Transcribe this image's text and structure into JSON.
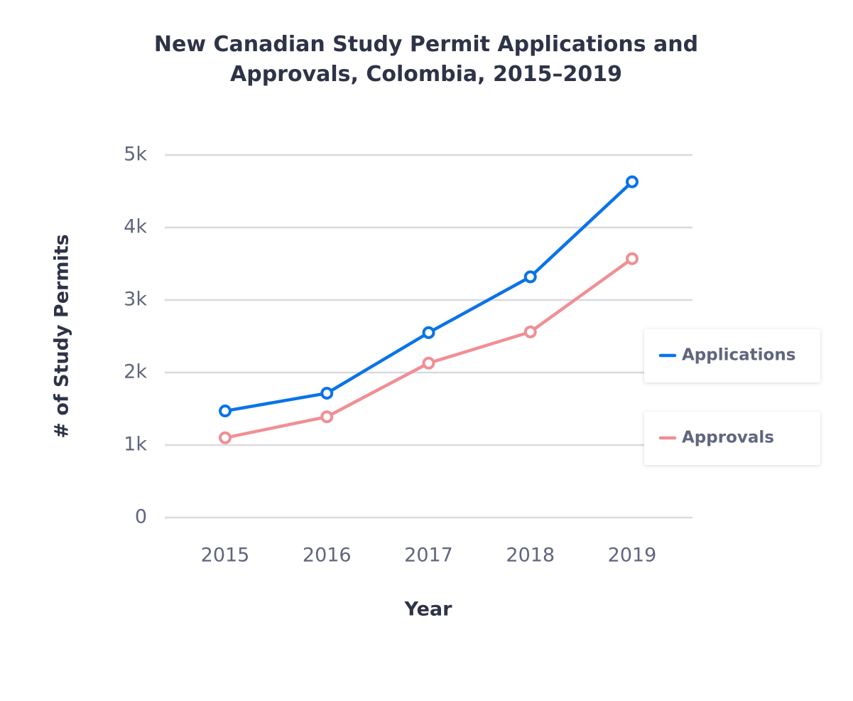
{
  "chart_data": {
    "type": "line",
    "title": "New Canadian Study Permit Applications and Approvals, Colombia, 2015–2019",
    "x_label": "Year",
    "y_label": "# of Study Permits",
    "categories": [
      "2015",
      "2016",
      "2017",
      "2018",
      "2019"
    ],
    "series": [
      {
        "name": "Applications",
        "color": "#0a73e8",
        "values": [
          1470,
          1715,
          2550,
          3320,
          4630
        ]
      },
      {
        "name": "Approvals",
        "color": "#f08f94",
        "values": [
          1100,
          1390,
          2130,
          2560,
          3570
        ]
      }
    ],
    "ylim": [
      0,
      5000
    ],
    "yticks": [
      0,
      {
        "value": 1000,
        "label": "1k"
      },
      {
        "value": 2000,
        "label": "2k"
      },
      {
        "value": 3000,
        "label": "3k"
      },
      {
        "value": 4000,
        "label": "4k"
      },
      {
        "value": 5000,
        "label": "5k"
      }
    ],
    "grid": true,
    "legend": "right"
  }
}
